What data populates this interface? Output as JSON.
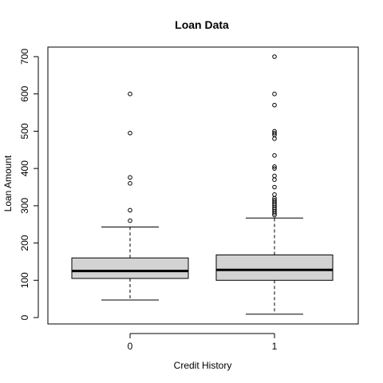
{
  "chart_data": {
    "type": "box",
    "title": "Loan Data",
    "xlabel": "Credit History",
    "ylabel": "Loan Amount",
    "ylim": [
      0,
      700
    ],
    "yticks": [
      0,
      100,
      200,
      300,
      400,
      500,
      600,
      700
    ],
    "grid": false,
    "categories": [
      "0",
      "1"
    ],
    "boxes": [
      {
        "category": "0",
        "whisker_low": 47,
        "q1": 105,
        "median": 125,
        "q3": 160,
        "whisker_high": 243,
        "outliers": [
          260,
          288,
          360,
          376,
          495,
          600
        ]
      },
      {
        "category": "1",
        "whisker_low": 9,
        "q1": 100,
        "median": 128,
        "q3": 168,
        "whisker_high": 267,
        "outliers": [
          275,
          280,
          285,
          290,
          295,
          300,
          305,
          310,
          315,
          320,
          330,
          350,
          370,
          380,
          400,
          405,
          435,
          480,
          490,
          495,
          500,
          570,
          600,
          700
        ]
      }
    ],
    "colors": {
      "box_fill": "#d3d3d3",
      "stroke": "#000000"
    }
  }
}
